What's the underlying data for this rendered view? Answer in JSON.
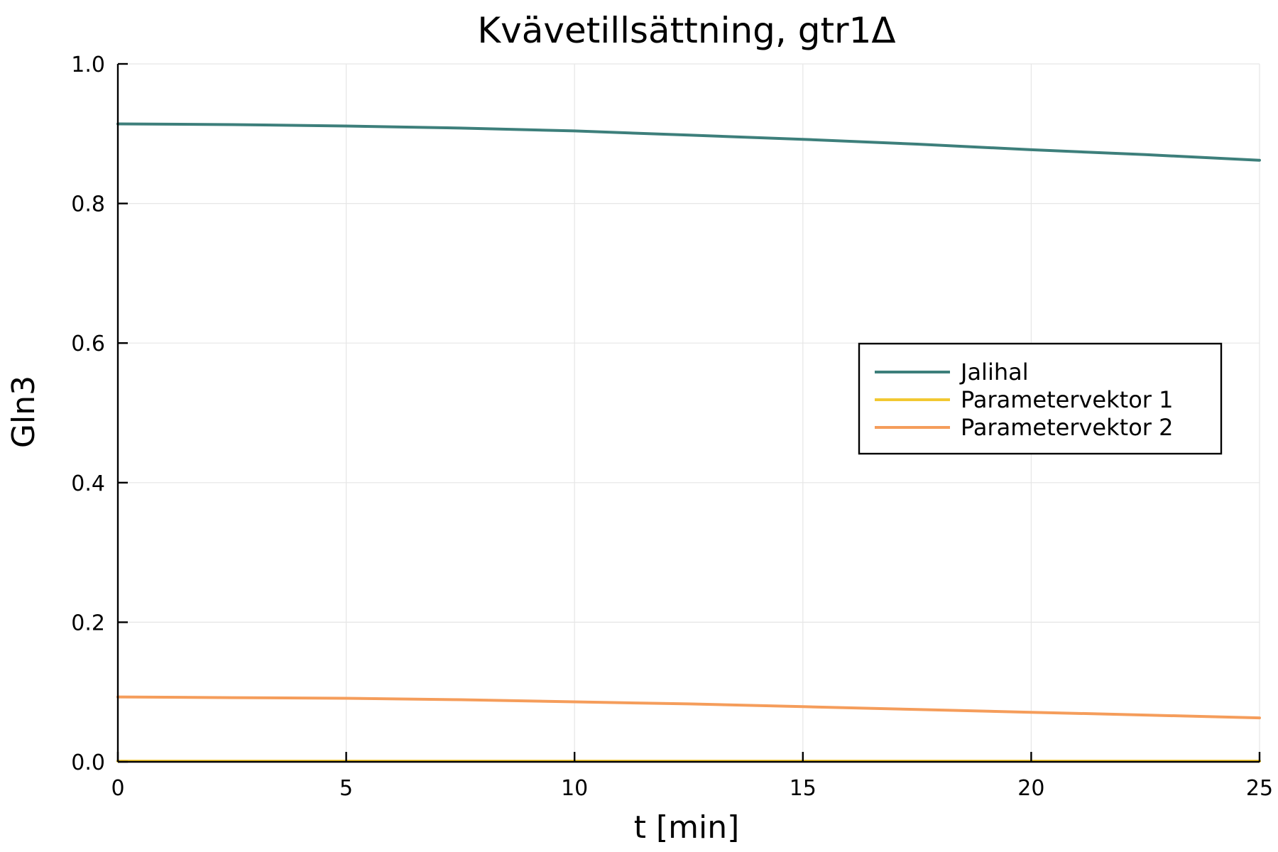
{
  "chart_data": {
    "type": "line",
    "title": "Kvävetillsättning, gtr1Δ",
    "xlabel": "t [min]",
    "ylabel": "Gln3",
    "xlim": [
      0,
      25
    ],
    "ylim": [
      0,
      1
    ],
    "xticks": [
      0,
      5,
      10,
      15,
      20,
      25
    ],
    "yticks": [
      0.0,
      0.2,
      0.4,
      0.6,
      0.8,
      1.0
    ],
    "xtick_labels": [
      "0",
      "5",
      "10",
      "15",
      "20",
      "25"
    ],
    "ytick_labels": [
      "0.0",
      "0.2",
      "0.4",
      "0.6",
      "0.8",
      "1.0"
    ],
    "grid": true,
    "legend_position": "right",
    "x": [
      0,
      2.5,
      5,
      7.5,
      10,
      12.5,
      15,
      17.5,
      20,
      22.5,
      25
    ],
    "series": [
      {
        "name": "Jalihal",
        "color": "#3d7f7b",
        "values": [
          0.914,
          0.913,
          0.911,
          0.908,
          0.904,
          0.898,
          0.892,
          0.885,
          0.877,
          0.87,
          0.862
        ]
      },
      {
        "name": "Parametervektor 1",
        "color": "#f2c832",
        "values": [
          0.001,
          0.001,
          0.001,
          0.001,
          0.001,
          0.001,
          0.001,
          0.001,
          0.001,
          0.001,
          0.001
        ]
      },
      {
        "name": "Parametervektor 2",
        "color": "#f59d5b",
        "values": [
          0.093,
          0.092,
          0.091,
          0.089,
          0.086,
          0.083,
          0.079,
          0.075,
          0.071,
          0.067,
          0.063
        ]
      }
    ]
  }
}
